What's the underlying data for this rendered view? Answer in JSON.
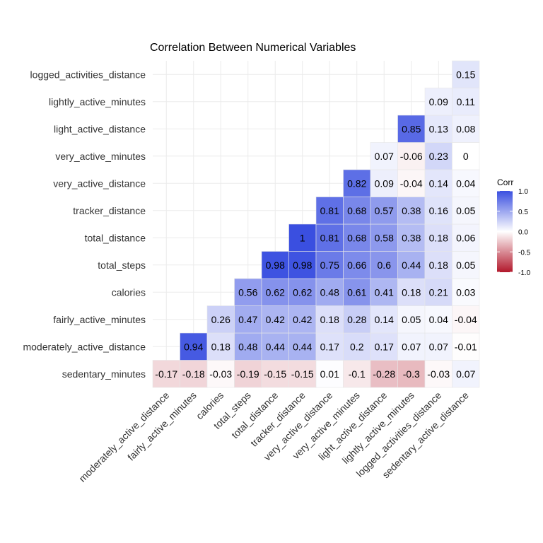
{
  "chart_data": {
    "type": "heatmap",
    "title": "Correlation Between Numerical Variables",
    "x_categories": [
      "moderately_active_distance",
      "fairly_active_minutes",
      "calories",
      "total_steps",
      "total_distance",
      "tracker_distance",
      "very_active_distance",
      "very_active_minutes",
      "light_active_distance",
      "lightly_active_minutes",
      "logged_activities_distance",
      "sedentary_active_distance"
    ],
    "y_categories": [
      "sedentary_minutes",
      "moderately_active_distance",
      "fairly_active_minutes",
      "calories",
      "total_steps",
      "total_distance",
      "tracker_distance",
      "very_active_distance",
      "very_active_minutes",
      "light_active_distance",
      "lightly_active_minutes",
      "logged_activities_distance"
    ],
    "matrix": [
      [
        -0.17,
        -0.18,
        -0.03,
        -0.19,
        -0.15,
        -0.15,
        0.01,
        -0.1,
        -0.28,
        -0.3,
        -0.03,
        0.07
      ],
      [
        null,
        0.94,
        0.18,
        0.48,
        0.44,
        0.44,
        0.17,
        0.2,
        0.17,
        0.07,
        0.07,
        -0.01
      ],
      [
        null,
        null,
        0.26,
        0.47,
        0.42,
        0.42,
        0.18,
        0.28,
        0.14,
        0.05,
        0.04,
        -0.04
      ],
      [
        null,
        null,
        null,
        0.56,
        0.62,
        0.62,
        0.48,
        0.61,
        0.41,
        0.18,
        0.21,
        0.03
      ],
      [
        null,
        null,
        null,
        null,
        0.98,
        0.98,
        0.75,
        0.66,
        0.6,
        0.44,
        0.18,
        0.05
      ],
      [
        null,
        null,
        null,
        null,
        null,
        1,
        0.81,
        0.68,
        0.58,
        0.38,
        0.18,
        0.06
      ],
      [
        null,
        null,
        null,
        null,
        null,
        null,
        0.81,
        0.68,
        0.57,
        0.38,
        0.16,
        0.05
      ],
      [
        null,
        null,
        null,
        null,
        null,
        null,
        null,
        0.82,
        0.09,
        -0.04,
        0.14,
        0.04
      ],
      [
        null,
        null,
        null,
        null,
        null,
        null,
        null,
        null,
        0.07,
        -0.06,
        0.23,
        0
      ],
      [
        null,
        null,
        null,
        null,
        null,
        null,
        null,
        null,
        null,
        0.85,
        0.13,
        0.08
      ],
      [
        null,
        null,
        null,
        null,
        null,
        null,
        null,
        null,
        null,
        null,
        0.09,
        0.11
      ],
      [
        null,
        null,
        null,
        null,
        null,
        null,
        null,
        null,
        null,
        null,
        null,
        0.15
      ]
    ],
    "legend": {
      "title": "Corr",
      "ticks": [
        "1.0",
        "0.5",
        "0.0",
        "-0.5",
        "-1.0"
      ],
      "tick_values": [
        1,
        0.5,
        0,
        -0.5,
        -1
      ],
      "placement": "right"
    },
    "colors": {
      "high": "#3A4FE0",
      "mid": "#FFFFFF",
      "low": "#B2182B"
    },
    "grid": true,
    "value_range": [
      -1,
      1
    ]
  }
}
